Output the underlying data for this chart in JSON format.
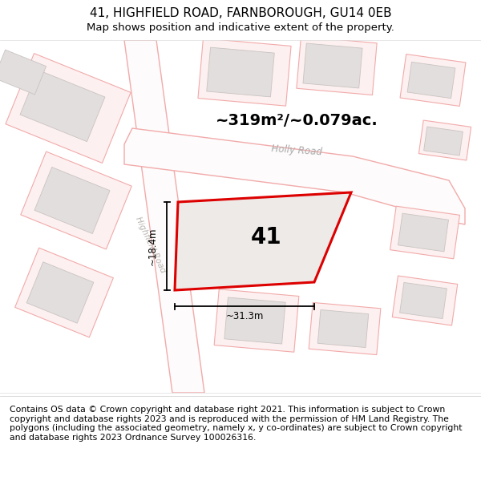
{
  "title": "41, HIGHFIELD ROAD, FARNBOROUGH, GU14 0EB",
  "subtitle": "Map shows position and indicative extent of the property.",
  "area_label": "~319m²/~0.079ac.",
  "property_number": "41",
  "dim_width": "~31.3m",
  "dim_height": "~18.4m",
  "road_label_holly": "Holly Road",
  "road_label_highfield": "Highfield Road",
  "footer": "Contains OS data © Crown copyright and database right 2021. This information is subject to Crown copyright and database rights 2023 and is reproduced with the permission of HM Land Registry. The polygons (including the associated geometry, namely x, y co-ordinates) are subject to Crown copyright and database rights 2023 Ordnance Survey 100026316.",
  "map_bg": "#f7f5f3",
  "building_fill": "#e2dedd",
  "building_edge": "#c8c4c2",
  "road_outline_color": "#f2aaaa",
  "property_edge_color": "#dd0000",
  "title_fontsize": 11,
  "subtitle_fontsize": 9.5,
  "footer_fontsize": 7.8,
  "area_fontsize": 14
}
